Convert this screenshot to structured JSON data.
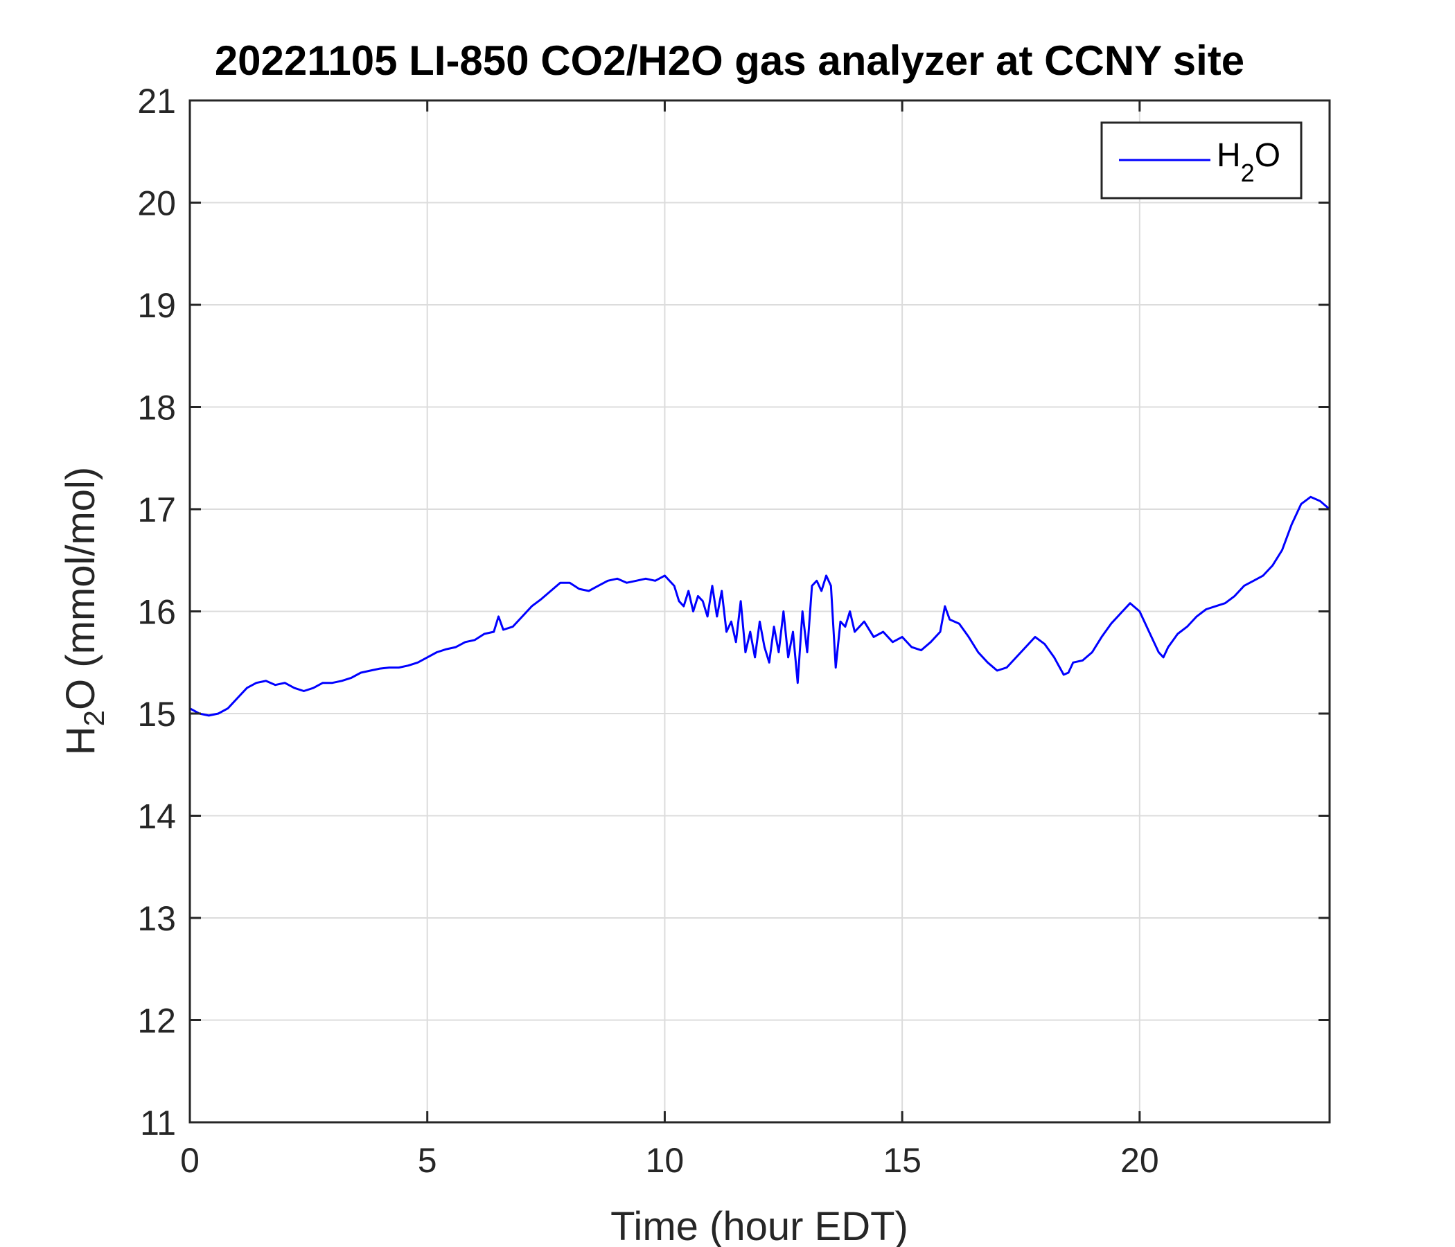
{
  "chart_data": {
    "type": "line",
    "title": "20221105 LI-850 CO2/H2O gas analyzer at CCNY site",
    "xlabel": "Time (hour EDT)",
    "ylabel": {
      "main": "H",
      "sub": "2",
      "rest": "O (mmol/mol)"
    },
    "xlim": [
      0,
      24
    ],
    "ylim": [
      11,
      21
    ],
    "xticks": [
      0,
      5,
      10,
      15,
      20
    ],
    "yticks": [
      11,
      12,
      13,
      14,
      15,
      16,
      17,
      18,
      19,
      20,
      21
    ],
    "grid": true,
    "legend_position": "top-right",
    "colors": {
      "series": "#0000ff",
      "grid": "#dcdcdc",
      "axis": "#262626"
    },
    "series": [
      {
        "name": {
          "main": "H",
          "sub": "2",
          "rest": "O"
        },
        "color": "#0000ff",
        "x": [
          0,
          0.2,
          0.4,
          0.6,
          0.8,
          1.0,
          1.2,
          1.4,
          1.6,
          1.8,
          2.0,
          2.2,
          2.4,
          2.6,
          2.8,
          3.0,
          3.2,
          3.4,
          3.6,
          3.8,
          4.0,
          4.2,
          4.4,
          4.6,
          4.8,
          5.0,
          5.2,
          5.4,
          5.6,
          5.8,
          6.0,
          6.2,
          6.4,
          6.5,
          6.6,
          6.8,
          7.0,
          7.2,
          7.4,
          7.6,
          7.8,
          8.0,
          8.2,
          8.4,
          8.6,
          8.8,
          9.0,
          9.2,
          9.4,
          9.6,
          9.8,
          10.0,
          10.2,
          10.3,
          10.4,
          10.5,
          10.6,
          10.7,
          10.8,
          10.9,
          11.0,
          11.1,
          11.2,
          11.3,
          11.4,
          11.5,
          11.6,
          11.7,
          11.8,
          11.9,
          12.0,
          12.1,
          12.2,
          12.3,
          12.4,
          12.5,
          12.6,
          12.7,
          12.8,
          12.9,
          13.0,
          13.1,
          13.2,
          13.3,
          13.4,
          13.5,
          13.6,
          13.7,
          13.8,
          13.9,
          14.0,
          14.2,
          14.4,
          14.6,
          14.8,
          15.0,
          15.2,
          15.4,
          15.6,
          15.8,
          15.9,
          16.0,
          16.2,
          16.4,
          16.6,
          16.8,
          17.0,
          17.2,
          17.4,
          17.6,
          17.8,
          18.0,
          18.2,
          18.4,
          18.5,
          18.6,
          18.8,
          19.0,
          19.2,
          19.4,
          19.6,
          19.8,
          20.0,
          20.2,
          20.4,
          20.5,
          20.6,
          20.8,
          21.0,
          21.2,
          21.4,
          21.6,
          21.8,
          22.0,
          22.2,
          22.4,
          22.6,
          22.8,
          23.0,
          23.2,
          23.4,
          23.6,
          23.8,
          24.0
        ],
        "y": [
          15.05,
          15.0,
          14.98,
          15.0,
          15.05,
          15.15,
          15.25,
          15.3,
          15.32,
          15.28,
          15.3,
          15.25,
          15.22,
          15.25,
          15.3,
          15.3,
          15.32,
          15.35,
          15.4,
          15.42,
          15.44,
          15.45,
          15.45,
          15.47,
          15.5,
          15.55,
          15.6,
          15.63,
          15.65,
          15.7,
          15.72,
          15.78,
          15.8,
          15.95,
          15.82,
          15.85,
          15.95,
          16.05,
          16.12,
          16.2,
          16.28,
          16.28,
          16.22,
          16.2,
          16.25,
          16.3,
          16.32,
          16.28,
          16.3,
          16.32,
          16.3,
          16.35,
          16.25,
          16.1,
          16.05,
          16.2,
          16.0,
          16.15,
          16.1,
          15.95,
          16.25,
          15.95,
          16.2,
          15.8,
          15.9,
          15.7,
          16.1,
          15.6,
          15.8,
          15.55,
          15.9,
          15.65,
          15.5,
          15.85,
          15.6,
          16.0,
          15.55,
          15.8,
          15.3,
          16.0,
          15.6,
          16.25,
          16.3,
          16.2,
          16.35,
          16.25,
          15.45,
          15.9,
          15.85,
          16.0,
          15.8,
          15.9,
          15.75,
          15.8,
          15.7,
          15.75,
          15.65,
          15.62,
          15.7,
          15.8,
          16.05,
          15.92,
          15.88,
          15.75,
          15.6,
          15.5,
          15.42,
          15.45,
          15.55,
          15.65,
          15.75,
          15.68,
          15.55,
          15.38,
          15.4,
          15.5,
          15.52,
          15.6,
          15.75,
          15.88,
          15.98,
          16.08,
          16.0,
          15.8,
          15.6,
          15.55,
          15.65,
          15.78,
          15.85,
          15.95,
          16.02,
          16.05,
          16.08,
          16.15,
          16.25,
          16.3,
          16.35,
          16.45,
          16.6,
          16.85,
          17.05,
          17.12,
          17.08,
          17.0
        ]
      }
    ]
  }
}
